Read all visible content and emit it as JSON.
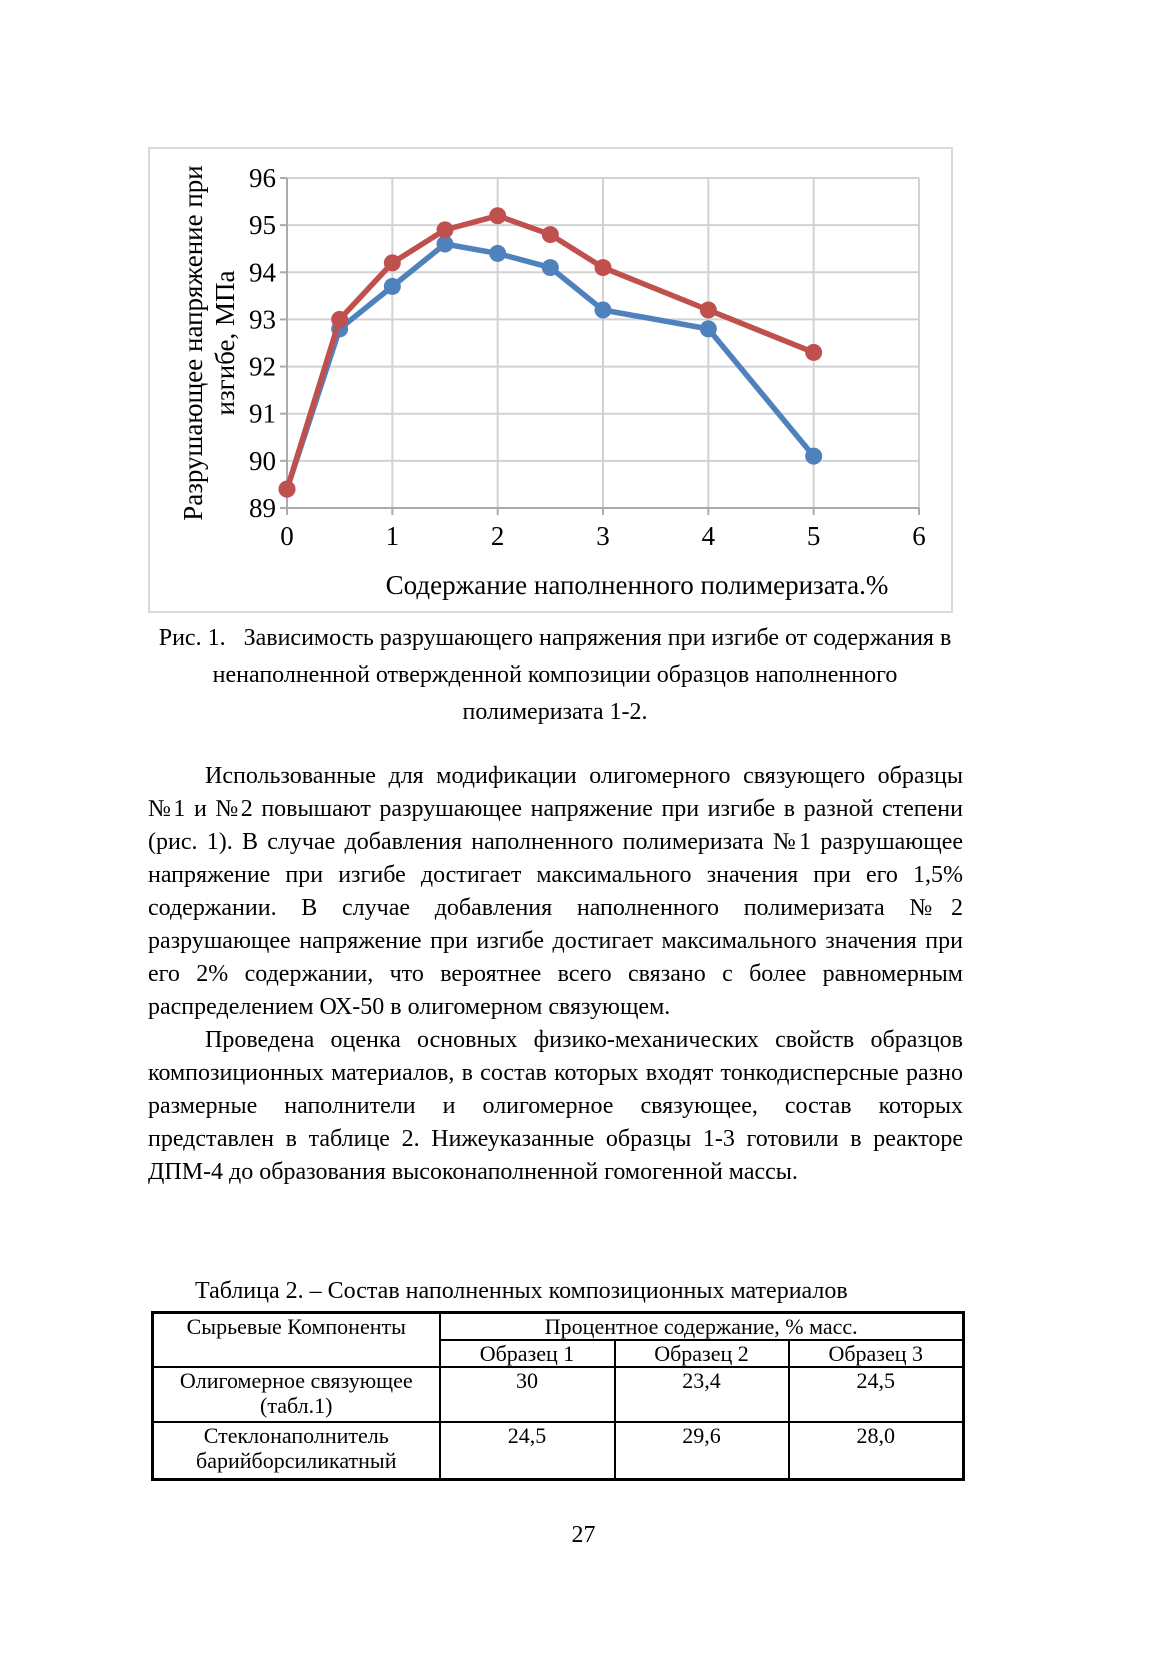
{
  "figure": {
    "caption_line1": "Рис. 1.   Зависимость разрушающего напряжения при изгибе от содержания в",
    "caption_line2": "ненаполненной отвержденной композиции образцов наполненного",
    "caption_line3": "полимеризата 1-2."
  },
  "chart_data": {
    "type": "line",
    "x": [
      0,
      0.5,
      1,
      1.5,
      2,
      2.5,
      3,
      4,
      5
    ],
    "series": [
      {
        "id": "series-blue",
        "color": "#4F81BD",
        "values": [
          89.4,
          92.8,
          93.7,
          94.6,
          94.4,
          94.1,
          93.2,
          92.8,
          90.1
        ]
      },
      {
        "id": "series-red",
        "color": "#C0504D",
        "values": [
          89.4,
          93.0,
          94.2,
          94.9,
          95.2,
          94.8,
          94.1,
          93.2,
          92.3
        ]
      }
    ],
    "title": "",
    "xlabel": "Содержание наполненного полимеризата.%",
    "ylabel_line1": "Разрушающее напряжение при",
    "ylabel_line2": "изгибе, МПа",
    "xlim": [
      0,
      6
    ],
    "ylim": [
      89,
      96
    ],
    "x_ticks": [
      0,
      1,
      2,
      3,
      4,
      5,
      6
    ],
    "y_ticks": [
      89,
      90,
      91,
      92,
      93,
      94,
      95,
      96
    ],
    "grid": true,
    "legend": "none",
    "grid_color": "#d2d2d2",
    "axis_color": "#ababab"
  },
  "paragraphs": {
    "p1": "Использованные для модификации олигомерного связующего образцы №1 и №2 повышают разрушающее напряжение при изгибе в разной степени (рис. 1). В случае добавления наполненного полимеризата №1 разрушающее напряжение при изгибе достигает максимального значения при его 1,5% содержании. В случае добавления наполненного полимеризата №2 разрушающее напряжение при изгибе достигает максимального значения при его 2% содержании, что вероятнее всего связано с более равномерным распределением ОХ-50 в олигомерном связующем.",
    "p2": "Проведена оценка основных физико-механических свойств образцов композиционных материалов, в состав которых входят тонкодисперсные разно размерные наполнители и олигомерное связующее, состав которых представлен в таблице 2. Нижеуказанные образцы 1-3 готовили в реакторе ДПМ-4 до образования высоконаполненной гомогенной массы."
  },
  "table": {
    "title": "Таблица 2. – Состав наполненных композиционных материалов",
    "col1_header": "Сырьевые Компоненты",
    "group_header": "Процентное содержание, % масс.",
    "sub_headers": [
      "Образец 1",
      "Образец 2",
      "Образец 3"
    ],
    "rows": [
      {
        "label": "Олигомерное связующее (табл.1)",
        "values": [
          "30",
          "23,4",
          "24,5"
        ]
      },
      {
        "label": "Стеклонаполнитель барийборсиликатный",
        "values": [
          "24,5",
          "29,6",
          "28,0"
        ]
      }
    ]
  },
  "page": {
    "number": "27"
  }
}
